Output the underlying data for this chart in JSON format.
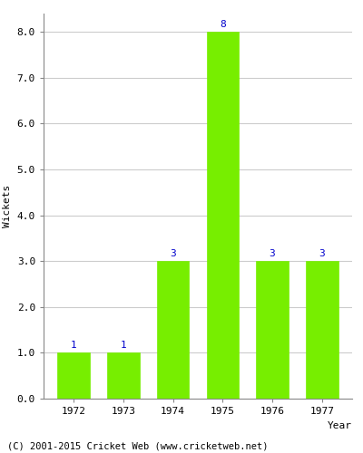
{
  "years": [
    "1972",
    "1973",
    "1974",
    "1975",
    "1976",
    "1977"
  ],
  "values": [
    1,
    1,
    3,
    8,
    3,
    3
  ],
  "bar_color": "#77ee00",
  "bar_edge_color": "#77ee00",
  "label_color": "#0000cc",
  "xlabel": "Year",
  "ylabel": "Wickets",
  "ylim": [
    0,
    8.4
  ],
  "yticks": [
    0.0,
    1.0,
    2.0,
    3.0,
    4.0,
    5.0,
    6.0,
    7.0,
    8.0
  ],
  "grid_color": "#cccccc",
  "background_color": "#ffffff",
  "footer_text": "(C) 2001-2015 Cricket Web (www.cricketweb.net)",
  "label_fontsize": 8,
  "axis_fontsize": 8,
  "footer_fontsize": 7.5
}
